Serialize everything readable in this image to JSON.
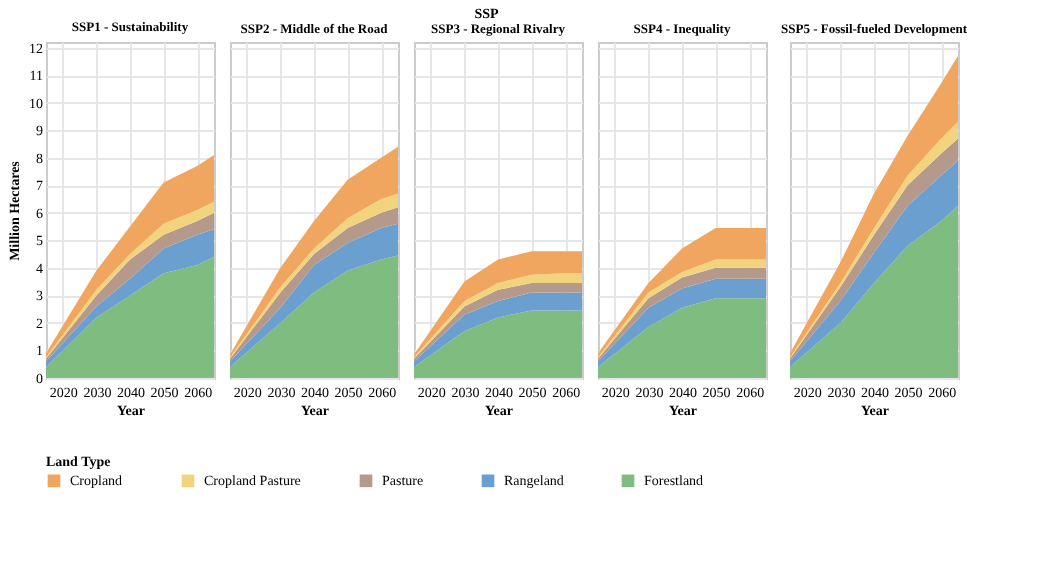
{
  "chart_data": [
    {
      "type": "area",
      "title": "SSP1 - Sustainability",
      "xlabel": "Year",
      "ylabel": "Million Hectares",
      "legend_title": "Land Type",
      "stacked": true,
      "x": [
        2015,
        2030,
        2040,
        2050,
        2060,
        2065
      ],
      "xlim": [
        2015,
        2065
      ],
      "xticks": [
        2020,
        2030,
        2040,
        2050,
        2060
      ],
      "ylim": [
        0,
        12.2
      ],
      "yticks": [
        0,
        1,
        2,
        3,
        4,
        5,
        6,
        7,
        8,
        9,
        10,
        11,
        12
      ],
      "grid": true,
      "legend": "bottom",
      "series": [
        {
          "name": "Forestland",
          "color": "#7fbc80",
          "values": [
            0.4,
            2.2,
            3.0,
            3.8,
            4.1,
            4.4
          ]
        },
        {
          "name": "Rangeland",
          "color": "#6b9fcf",
          "values": [
            0.2,
            0.4,
            0.6,
            0.9,
            1.1,
            1.0
          ]
        },
        {
          "name": "Pasture",
          "color": "#b59a8c",
          "values": [
            0.1,
            0.4,
            0.7,
            0.5,
            0.5,
            0.6
          ]
        },
        {
          "name": "Cropland Pasture",
          "color": "#f3d47e",
          "values": [
            0.05,
            0.2,
            0.2,
            0.4,
            0.4,
            0.4
          ]
        },
        {
          "name": "Cropland",
          "color": "#f0a65e",
          "values": [
            0.15,
            0.7,
            1.0,
            1.5,
            1.6,
            1.7
          ]
        }
      ]
    },
    {
      "type": "area",
      "title": "SSP2 - Middle of the Road",
      "xlabel": "Year",
      "stacked": true,
      "x": [
        2015,
        2030,
        2040,
        2050,
        2060,
        2065
      ],
      "xlim": [
        2015,
        2065
      ],
      "xticks": [
        2020,
        2030,
        2040,
        2050,
        2060
      ],
      "ylim": [
        0,
        12.2
      ],
      "yticks": [
        0,
        1,
        2,
        3,
        4,
        5,
        6,
        7,
        8,
        9,
        10,
        11,
        12
      ],
      "grid": true,
      "tick_labels": "x",
      "series": [
        {
          "color": "#7fbc80",
          "values": [
            0.4,
            2.0,
            3.1,
            3.9,
            4.3,
            4.45
          ]
        },
        {
          "color": "#6b9fcf",
          "values": [
            0.2,
            0.55,
            1.0,
            1.0,
            1.15,
            1.15
          ]
        },
        {
          "color": "#b59a8c",
          "values": [
            0.1,
            0.55,
            0.4,
            0.55,
            0.55,
            0.6
          ]
        },
        {
          "color": "#f3d47e",
          "values": [
            0.05,
            0.2,
            0.2,
            0.35,
            0.5,
            0.5
          ]
        },
        {
          "color": "#f0a65e",
          "values": [
            0.1,
            0.7,
            1.0,
            1.4,
            1.5,
            1.7
          ]
        }
      ]
    },
    {
      "type": "area",
      "title": "SSP3 - Regional Rivalry",
      "xlabel": "Year",
      "annotations": [
        "SSP"
      ],
      "stacked": true,
      "x": [
        2015,
        2030,
        2040,
        2050,
        2060,
        2065
      ],
      "xlim": [
        2015,
        2065
      ],
      "xticks": [
        2020,
        2030,
        2040,
        2050,
        2060
      ],
      "ylim": [
        0,
        12.2
      ],
      "yticks": [
        0,
        1,
        2,
        3,
        4,
        5,
        6,
        7,
        8,
        9,
        10,
        11,
        12
      ],
      "grid": true,
      "tick_labels": "x",
      "series": [
        {
          "color": "#7fbc80",
          "values": [
            0.4,
            1.7,
            2.2,
            2.45,
            2.45,
            2.45
          ]
        },
        {
          "color": "#6b9fcf",
          "values": [
            0.2,
            0.6,
            0.6,
            0.65,
            0.65,
            0.65
          ]
        },
        {
          "color": "#b59a8c",
          "values": [
            0.1,
            0.3,
            0.4,
            0.35,
            0.35,
            0.35
          ]
        },
        {
          "color": "#f3d47e",
          "values": [
            0.05,
            0.2,
            0.25,
            0.3,
            0.35,
            0.35
          ]
        },
        {
          "color": "#f0a65e",
          "values": [
            0.1,
            0.7,
            0.85,
            0.85,
            0.8,
            0.8
          ]
        }
      ]
    },
    {
      "type": "area",
      "title": "SSP4 - Inequality",
      "xlabel": "Year",
      "stacked": true,
      "x": [
        2015,
        2030,
        2040,
        2050,
        2060,
        2065
      ],
      "xlim": [
        2015,
        2065
      ],
      "xticks": [
        2020,
        2030,
        2040,
        2050,
        2060
      ],
      "ylim": [
        0,
        12.2
      ],
      "yticks": [
        0,
        1,
        2,
        3,
        4,
        5,
        6,
        7,
        8,
        9,
        10,
        11,
        12
      ],
      "grid": true,
      "tick_labels": "x",
      "series": [
        {
          "color": "#7fbc80",
          "values": [
            0.4,
            1.85,
            2.55,
            2.9,
            2.9,
            2.9
          ]
        },
        {
          "color": "#6b9fcf",
          "values": [
            0.2,
            0.7,
            0.7,
            0.7,
            0.7,
            0.7
          ]
        },
        {
          "color": "#b59a8c",
          "values": [
            0.1,
            0.35,
            0.4,
            0.4,
            0.4,
            0.4
          ]
        },
        {
          "color": "#f3d47e",
          "values": [
            0.05,
            0.2,
            0.2,
            0.3,
            0.3,
            0.3
          ]
        },
        {
          "color": "#f0a65e",
          "values": [
            0.15,
            0.35,
            0.85,
            1.15,
            1.15,
            1.15
          ]
        }
      ]
    },
    {
      "type": "area",
      "title": "SSP5 - Fossil-fueled Development",
      "xlabel": "Year",
      "stacked": true,
      "x": [
        2015,
        2030,
        2040,
        2050,
        2060,
        2065
      ],
      "xlim": [
        2015,
        2065
      ],
      "xticks": [
        2020,
        2030,
        2040,
        2050,
        2060
      ],
      "ylim": [
        0,
        12.2
      ],
      "yticks": [
        0,
        1,
        2,
        3,
        4,
        5,
        6,
        7,
        8,
        9,
        10,
        11,
        12
      ],
      "grid": true,
      "tick_labels": "x",
      "series": [
        {
          "color": "#7fbc80",
          "values": [
            0.4,
            2.0,
            3.45,
            4.8,
            5.7,
            6.25
          ]
        },
        {
          "color": "#6b9fcf",
          "values": [
            0.2,
            0.8,
            1.1,
            1.45,
            1.65,
            1.65
          ]
        },
        {
          "color": "#b59a8c",
          "values": [
            0.1,
            0.5,
            0.65,
            0.75,
            0.8,
            0.8
          ]
        },
        {
          "color": "#f3d47e",
          "values": [
            0.05,
            0.15,
            0.25,
            0.35,
            0.55,
            0.6
          ]
        },
        {
          "color": "#f0a65e",
          "values": [
            0.15,
            0.75,
            1.25,
            1.45,
            2.0,
            2.4
          ]
        }
      ]
    }
  ]
}
